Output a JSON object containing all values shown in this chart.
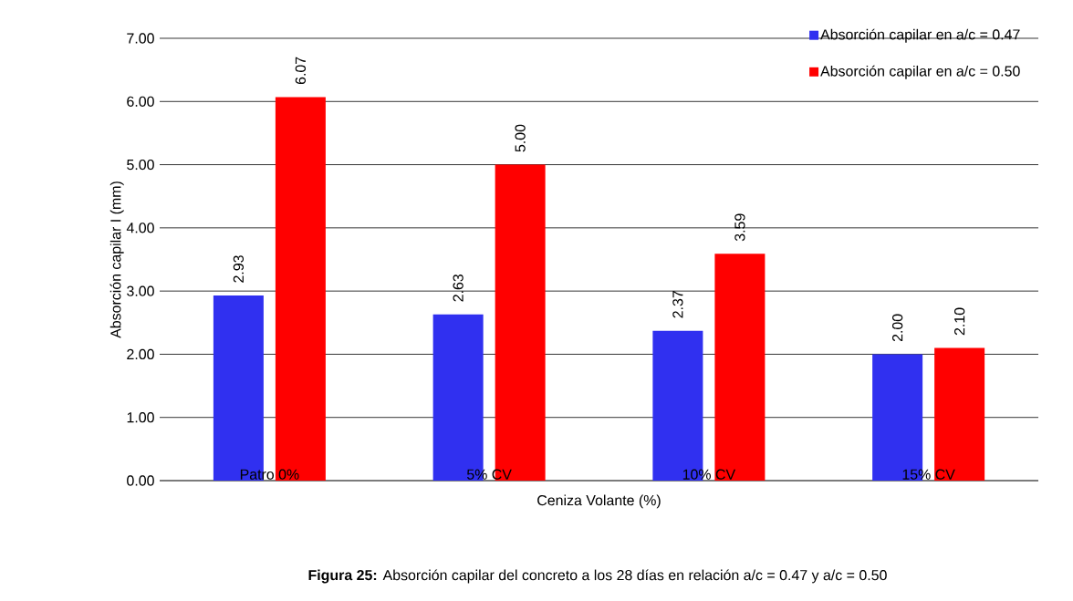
{
  "chart_data": {
    "type": "bar",
    "xlabel": "Ceniza Volante (%)",
    "ylabel": "Absorción capilar I (mm)",
    "categories": [
      "Patro 0%",
      "5% CV",
      "10% CV",
      "15% CV"
    ],
    "series": [
      {
        "name": "Absorción capilar en a/c = 0.47",
        "color": "#3030f0",
        "values": [
          2.93,
          2.63,
          2.37,
          2.0
        ],
        "value_labels": [
          "2.93",
          "2.63",
          "2.37",
          "2.00"
        ]
      },
      {
        "name": "Absorción capilar en a/c = 0.50",
        "color": "#ff0000",
        "values": [
          6.07,
          5.0,
          3.59,
          2.1
        ],
        "value_labels": [
          "6.07",
          "5.00",
          "3.59",
          "2.10"
        ]
      }
    ],
    "ylim": [
      0,
      7
    ],
    "yticks": [
      {
        "value": 0,
        "label": "0.00"
      },
      {
        "value": 1,
        "label": "1.00"
      },
      {
        "value": 2,
        "label": "2.00"
      },
      {
        "value": 3,
        "label": "3.00"
      },
      {
        "value": 4,
        "label": "4.00"
      },
      {
        "value": 5,
        "label": "5.00"
      },
      {
        "value": 6,
        "label": "6.00"
      },
      {
        "value": 7,
        "label": "7.00"
      }
    ],
    "grid": "y",
    "legend": "top right",
    "annotations": [
      "**Figura 25:** Absorción capilar del concreto a los 28 días en relación a/c = 0.47 y a/c = 0.50"
    ]
  }
}
